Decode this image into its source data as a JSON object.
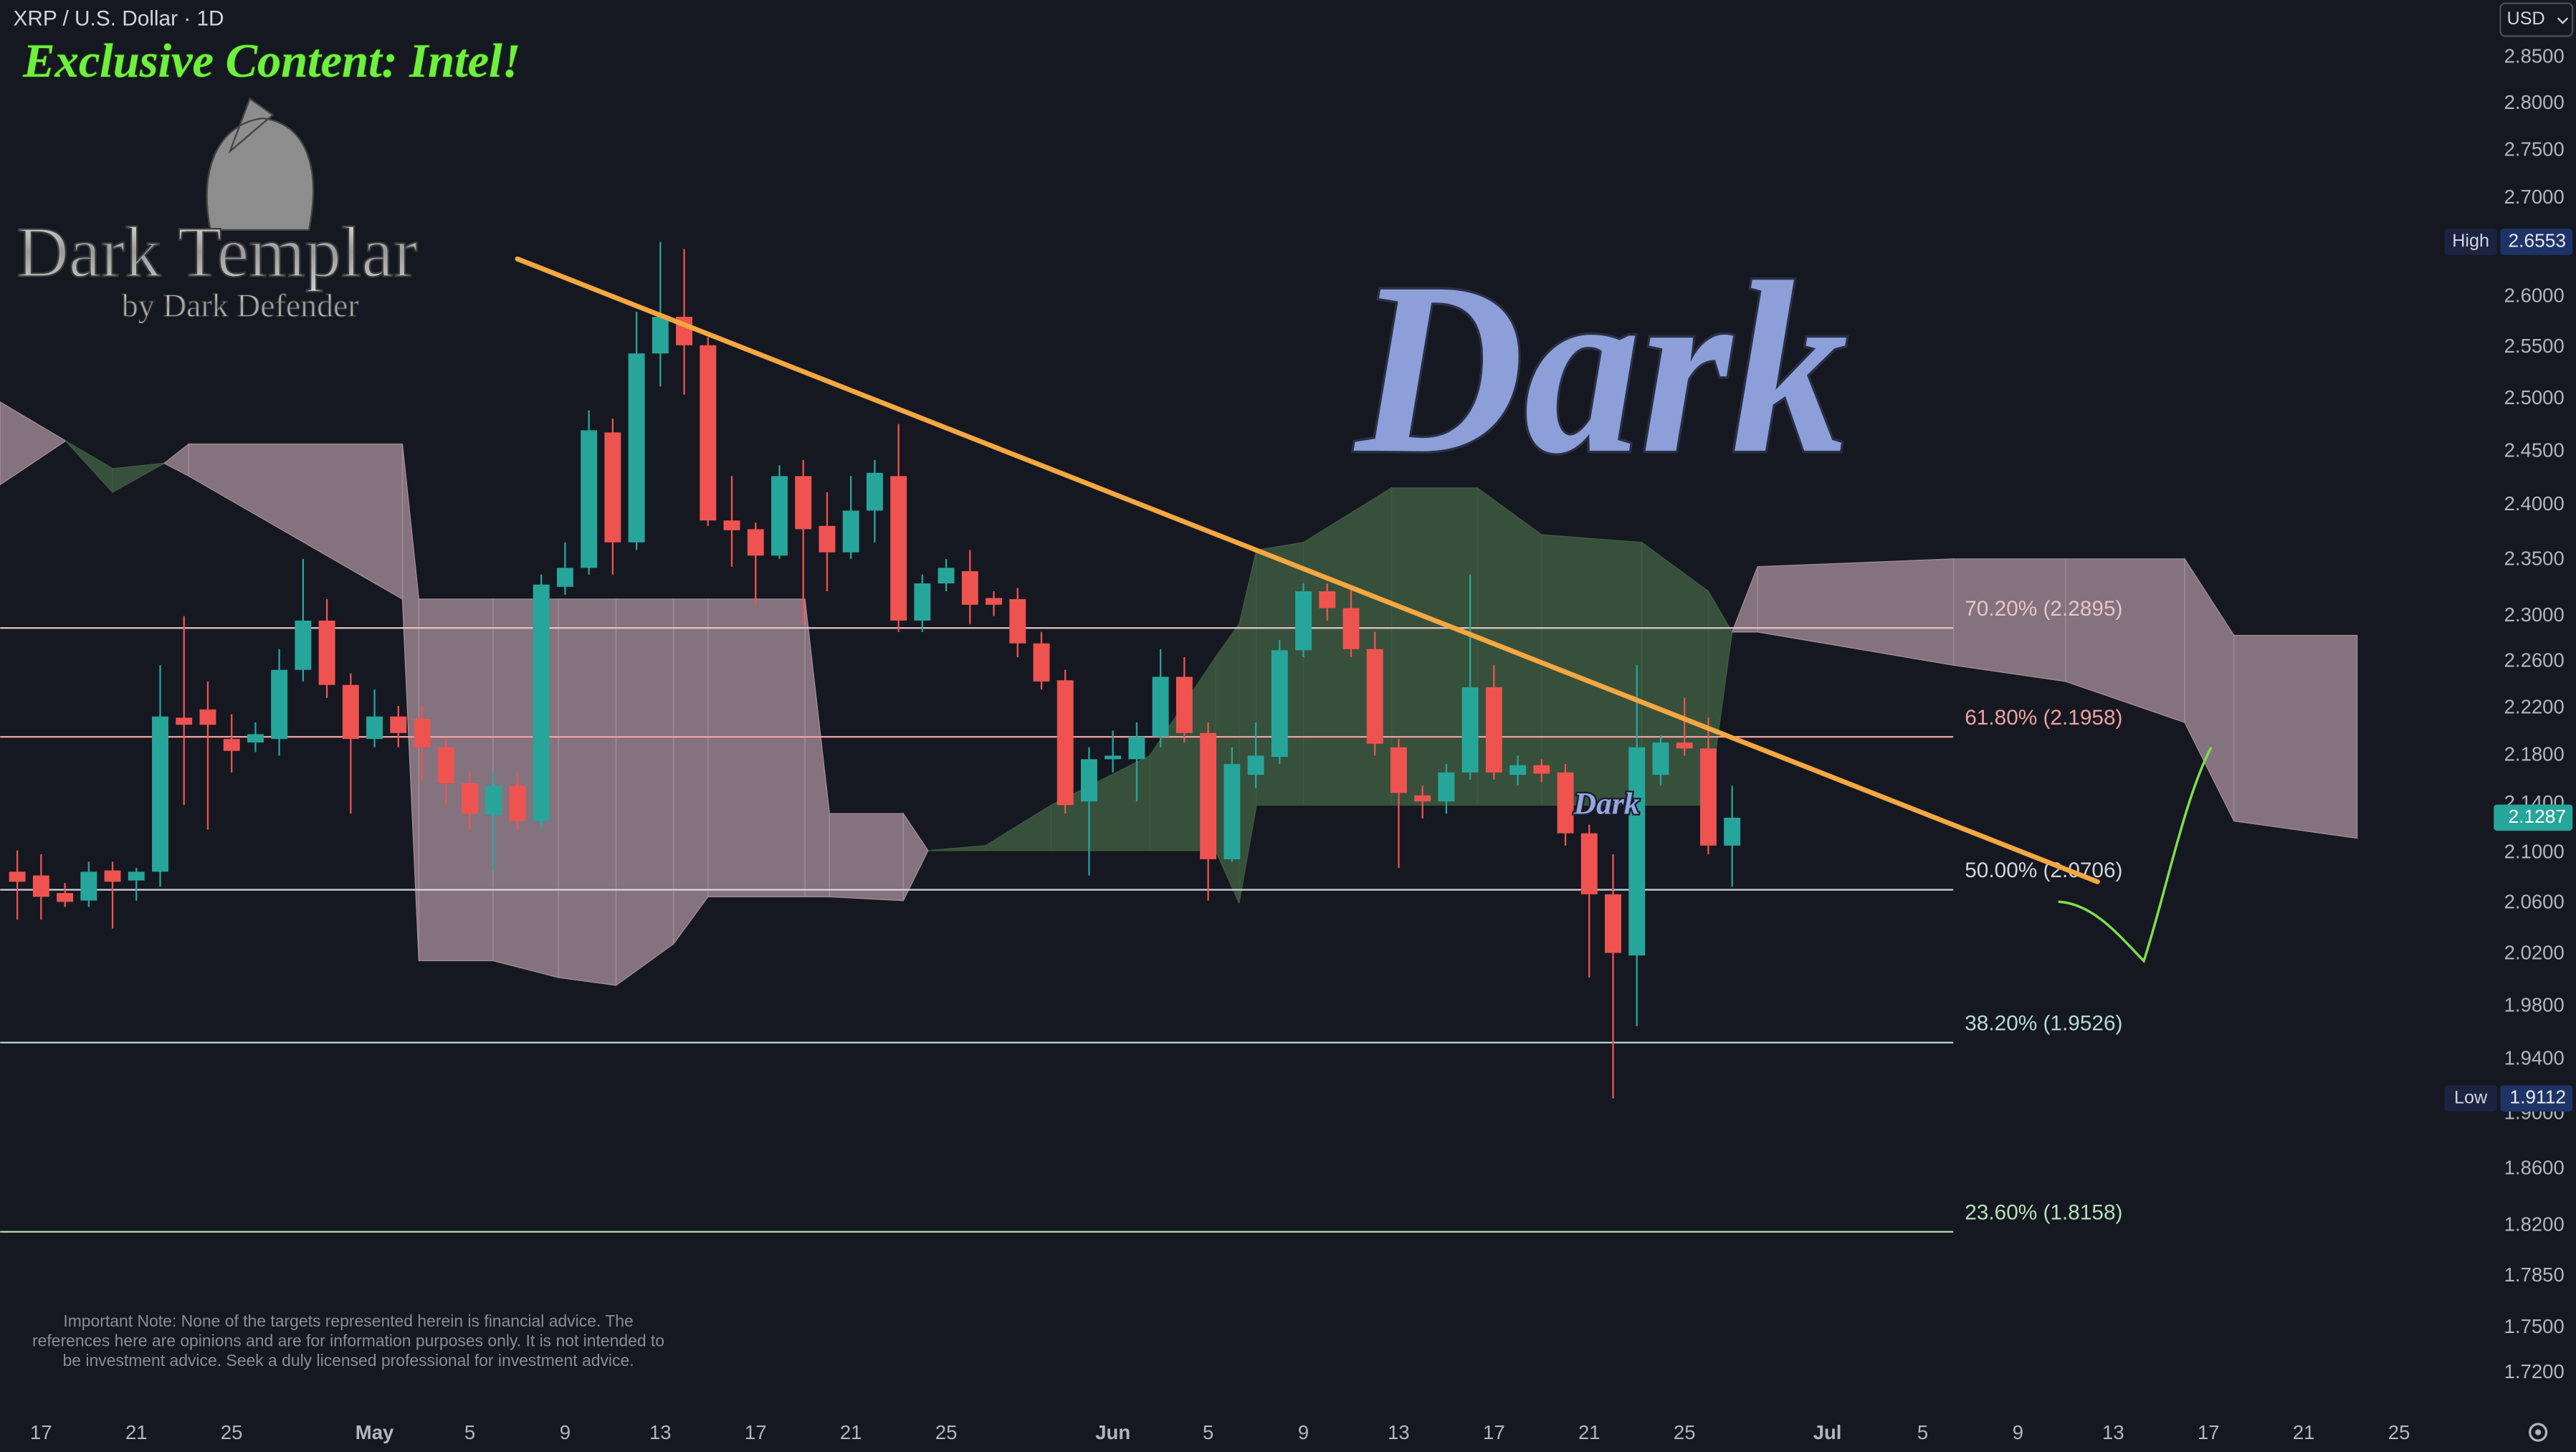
{
  "header": {
    "symbol": "XRP / U.S. Dollar · 1D",
    "currency": "USD"
  },
  "branding": {
    "banner": "Exclusive Content: Intel!",
    "logo_title": "Dark Templar",
    "logo_subtitle": "by Dark Defender",
    "watermark": "Dark",
    "small_watermark": "Dark"
  },
  "disclaimer": [
    "Important Note: None of the targets represented herein is financial advice. The",
    "references here are opinions and are for information purposes only. It is not intended to",
    "be investment advice. Seek a duly licensed professional for investment advice."
  ],
  "chart_data": {
    "type": "candlestick",
    "log_scale": true,
    "grid": false,
    "xlim": [
      -1.72,
      100.7
    ],
    "ylim": [
      1.6994,
      2.9137
    ],
    "xticks": [
      {
        "value": 0,
        "label": "17"
      },
      {
        "value": 4,
        "label": "21"
      },
      {
        "value": 8,
        "label": "25"
      },
      {
        "value": 14,
        "label": "May"
      },
      {
        "value": 18,
        "label": "5"
      },
      {
        "value": 22,
        "label": "9"
      },
      {
        "value": 26,
        "label": "13"
      },
      {
        "value": 30,
        "label": "17"
      },
      {
        "value": 34,
        "label": "21"
      },
      {
        "value": 38,
        "label": "25"
      },
      {
        "value": 45,
        "label": "Jun"
      },
      {
        "value": 49,
        "label": "5"
      },
      {
        "value": 53,
        "label": "9"
      },
      {
        "value": 57,
        "label": "13"
      },
      {
        "value": 61,
        "label": "17"
      },
      {
        "value": 65,
        "label": "21"
      },
      {
        "value": 69,
        "label": "25"
      },
      {
        "value": 75,
        "label": "Jul"
      },
      {
        "value": 79,
        "label": "5"
      },
      {
        "value": 83,
        "label": "9"
      },
      {
        "value": 87,
        "label": "13"
      },
      {
        "value": 91,
        "label": "17"
      },
      {
        "value": 95,
        "label": "21"
      },
      {
        "value": 99,
        "label": "25"
      }
    ],
    "yticks": [
      {
        "value": 2.85,
        "label": "2.8500"
      },
      {
        "value": 2.8,
        "label": "2.8000"
      },
      {
        "value": 2.75,
        "label": "2.7500"
      },
      {
        "value": 2.7,
        "label": "2.7000"
      },
      {
        "value": 2.6,
        "label": "2.6000"
      },
      {
        "value": 2.55,
        "label": "2.5500"
      },
      {
        "value": 2.5,
        "label": "2.5000"
      },
      {
        "value": 2.45,
        "label": "2.4500"
      },
      {
        "value": 2.4,
        "label": "2.4000"
      },
      {
        "value": 2.35,
        "label": "2.3500"
      },
      {
        "value": 2.3,
        "label": "2.3000"
      },
      {
        "value": 2.26,
        "label": "2.2600"
      },
      {
        "value": 2.22,
        "label": "2.2200"
      },
      {
        "value": 2.18,
        "label": "2.1800"
      },
      {
        "value": 2.14,
        "label": "2.1400"
      },
      {
        "value": 2.1,
        "label": "2.1000"
      },
      {
        "value": 2.06,
        "label": "2.0600"
      },
      {
        "value": 2.02,
        "label": "2.0200"
      },
      {
        "value": 1.98,
        "label": "1.9800"
      },
      {
        "value": 1.94,
        "label": "1.9400"
      },
      {
        "value": 1.9,
        "label": "1.9000"
      },
      {
        "value": 1.86,
        "label": "1.8600"
      },
      {
        "value": 1.82,
        "label": "1.8200"
      },
      {
        "value": 1.785,
        "label": "1.7850"
      },
      {
        "value": 1.75,
        "label": "1.7500"
      },
      {
        "value": 1.72,
        "label": "1.7200"
      }
    ],
    "high_label": "High",
    "low_label": "Low",
    "candles": {
      "up_color": "#26a69a",
      "down_color": "#ef5350",
      "x": [
        -1,
        0,
        1,
        2,
        3,
        4,
        5,
        6,
        7,
        8,
        9,
        10,
        11,
        12,
        13,
        14,
        15,
        16,
        17,
        18,
        19,
        20,
        21,
        22,
        23,
        24,
        25,
        26,
        27,
        28,
        29,
        30,
        31,
        32,
        33,
        34,
        35,
        36,
        37,
        38,
        39,
        40,
        41,
        42,
        43,
        44,
        45,
        46,
        47,
        48,
        49,
        50,
        51,
        52,
        53,
        54,
        55,
        56,
        57,
        58,
        59,
        60,
        61,
        62,
        63,
        64,
        65,
        66,
        67,
        68,
        69,
        70,
        71
      ],
      "open": [
        2.085,
        2.082,
        2.068,
        2.062,
        2.086,
        2.078,
        2.085,
        2.212,
        2.219,
        2.194,
        2.191,
        2.194,
        2.253,
        2.296,
        2.24,
        2.194,
        2.213,
        2.211,
        2.187,
        2.157,
        2.131,
        2.155,
        2.126,
        2.326,
        2.343,
        2.468,
        2.366,
        2.544,
        2.58,
        2.552,
        2.386,
        2.378,
        2.354,
        2.427,
        2.381,
        2.357,
        2.395,
        2.427,
        2.296,
        2.329,
        2.34,
        2.316,
        2.315,
        2.276,
        2.244,
        2.142,
        2.177,
        2.177,
        2.196,
        2.247,
        2.199,
        2.095,
        2.164,
        2.179,
        2.27,
        2.322,
        2.307,
        2.271,
        2.187,
        2.147,
        2.142,
        2.166,
        2.238,
        2.164,
        2.172,
        2.166,
        2.116,
        2.067,
        2.019,
        2.164,
        2.191,
        2.186,
        2.106
      ],
      "high": [
        2.102,
        2.099,
        2.076,
        2.093,
        2.093,
        2.088,
        2.257,
        2.3,
        2.243,
        2.215,
        2.208,
        2.271,
        2.351,
        2.315,
        2.25,
        2.236,
        2.222,
        2.222,
        2.194,
        2.166,
        2.166,
        2.166,
        2.337,
        2.366,
        2.489,
        2.481,
        2.585,
        2.6553,
        2.648,
        2.56,
        2.427,
        2.384,
        2.437,
        2.442,
        2.412,
        2.427,
        2.442,
        2.476,
        2.337,
        2.351,
        2.359,
        2.322,
        2.325,
        2.286,
        2.253,
        2.187,
        2.201,
        2.208,
        2.271,
        2.264,
        2.208,
        2.187,
        2.208,
        2.279,
        2.329,
        2.329,
        2.325,
        2.286,
        2.194,
        2.155,
        2.173,
        2.337,
        2.257,
        2.18,
        2.177,
        2.173,
        2.123,
        2.099,
        2.257,
        2.197,
        2.229,
        2.212,
        2.155
      ],
      "low": [
        2.047,
        2.047,
        2.057,
        2.057,
        2.04,
        2.062,
        2.073,
        2.139,
        2.119,
        2.166,
        2.183,
        2.18,
        2.243,
        2.229,
        2.132,
        2.187,
        2.187,
        2.16,
        2.139,
        2.119,
        2.086,
        2.119,
        2.119,
        2.319,
        2.337,
        2.337,
        2.359,
        2.512,
        2.504,
        2.381,
        2.344,
        2.31,
        2.351,
        2.293,
        2.322,
        2.351,
        2.366,
        2.286,
        2.286,
        2.322,
        2.293,
        2.3,
        2.264,
        2.236,
        2.132,
        2.082,
        2.166,
        2.142,
        2.187,
        2.191,
        2.062,
        2.093,
        2.153,
        2.173,
        2.264,
        2.296,
        2.264,
        2.18,
        2.088,
        2.128,
        2.132,
        2.16,
        2.16,
        2.155,
        2.158,
        2.106,
        2.002,
        1.9112,
        1.965,
        2.155,
        2.18,
        2.099,
        2.073
      ],
      "close": [
        2.077,
        2.065,
        2.061,
        2.085,
        2.077,
        2.085,
        2.213,
        2.206,
        2.206,
        2.184,
        2.198,
        2.253,
        2.296,
        2.24,
        2.194,
        2.213,
        2.199,
        2.187,
        2.157,
        2.132,
        2.155,
        2.126,
        2.328,
        2.343,
        2.47,
        2.366,
        2.544,
        2.58,
        2.552,
        2.386,
        2.377,
        2.354,
        2.427,
        2.378,
        2.357,
        2.395,
        2.43,
        2.296,
        2.329,
        2.343,
        2.31,
        2.31,
        2.276,
        2.243,
        2.139,
        2.177,
        2.18,
        2.196,
        2.247,
        2.199,
        2.095,
        2.173,
        2.18,
        2.27,
        2.322,
        2.307,
        2.271,
        2.19,
        2.149,
        2.142,
        2.166,
        2.238,
        2.166,
        2.172,
        2.165,
        2.116,
        2.067,
        2.021,
        2.187,
        2.191,
        2.186,
        2.106,
        2.1287
      ]
    },
    "cloud": {
      "bull_color": "#3d5a40",
      "bear_color": "#a08a96",
      "x": [
        -1.72,
        1.03,
        3,
        5.17,
        6.2,
        15.17,
        15.86,
        18.97,
        21.72,
        24.14,
        26.55,
        28,
        32.07,
        33.1,
        36.2,
        37.24,
        39.66,
        42.41,
        46.55,
        49.31,
        50.3,
        51.03,
        53,
        56.7,
        60.3,
        63,
        67.2,
        70,
        71,
        72.07,
        80.3,
        85,
        90,
        92.07,
        97.24
      ],
      "span_a": [
        2.419,
        2.46,
        2.434,
        2.439,
        2.427,
        2.315,
        2.015,
        2.015,
        2.002,
        1.996,
        2.028,
        2.065,
        2.065,
        2.065,
        2.062,
        2.102,
        2.106,
        2.139,
        2.18,
        2.264,
        2.293,
        2.359,
        2.366,
        2.416,
        2.416,
        2.373,
        2.366,
        2.322,
        2.286,
        2.286,
        2.257,
        2.243,
        2.208,
        2.126,
        2.112
      ],
      "span_b": [
        2.497,
        2.46,
        2.412,
        2.439,
        2.457,
        2.457,
        2.315,
        2.315,
        2.315,
        2.315,
        2.315,
        2.315,
        2.315,
        2.132,
        2.132,
        2.102,
        2.102,
        2.102,
        2.102,
        2.102,
        2.06,
        2.139,
        2.139,
        2.139,
        2.139,
        2.139,
        2.139,
        2.139,
        2.286,
        2.344,
        2.351,
        2.351,
        2.351,
        2.283,
        2.283
      ]
    },
    "fib_levels": [
      {
        "value": 2.2895,
        "label": "70.20% (2.2895)",
        "color": "#e6c4c4"
      },
      {
        "value": 2.1958,
        "label": "61.80% (2.1958)",
        "color": "#f0a0a0"
      },
      {
        "value": 2.0706,
        "label": "50.00% (2.0706)",
        "color": "#d1d4dc"
      },
      {
        "value": 1.9526,
        "label": "38.20% (1.9526)",
        "color": "#b5dbd2"
      },
      {
        "value": 1.8158,
        "label": "23.60% (1.8158)",
        "color": "#b6dfb6"
      }
    ],
    "trendline": {
      "x": [
        20,
        86.34
      ],
      "y": [
        2.638,
        2.077
      ],
      "color": "#f5a742"
    }
  }
}
